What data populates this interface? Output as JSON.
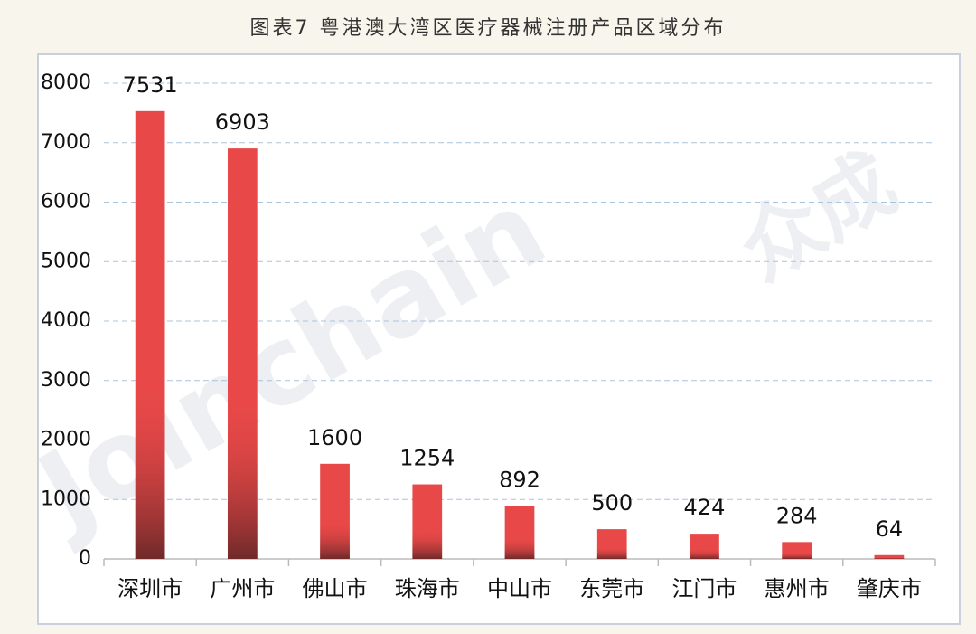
{
  "chart_data": {
    "type": "bar",
    "title": "图表7  粤港澳大湾区医疗器械注册产品区域分布",
    "categories": [
      "深圳市",
      "广州市",
      "佛山市",
      "珠海市",
      "中山市",
      "东莞市",
      "江门市",
      "惠州市",
      "肇庆市"
    ],
    "values": [
      7531,
      6903,
      1600,
      1254,
      892,
      500,
      424,
      284,
      64
    ],
    "color": "#e84848",
    "ylim": [
      0,
      8000
    ],
    "yticks": [
      0,
      1000,
      2000,
      3000,
      4000,
      5000,
      6000,
      7000,
      8000
    ],
    "grid": true,
    "watermark": [
      "Joinchain",
      "众成"
    ]
  }
}
